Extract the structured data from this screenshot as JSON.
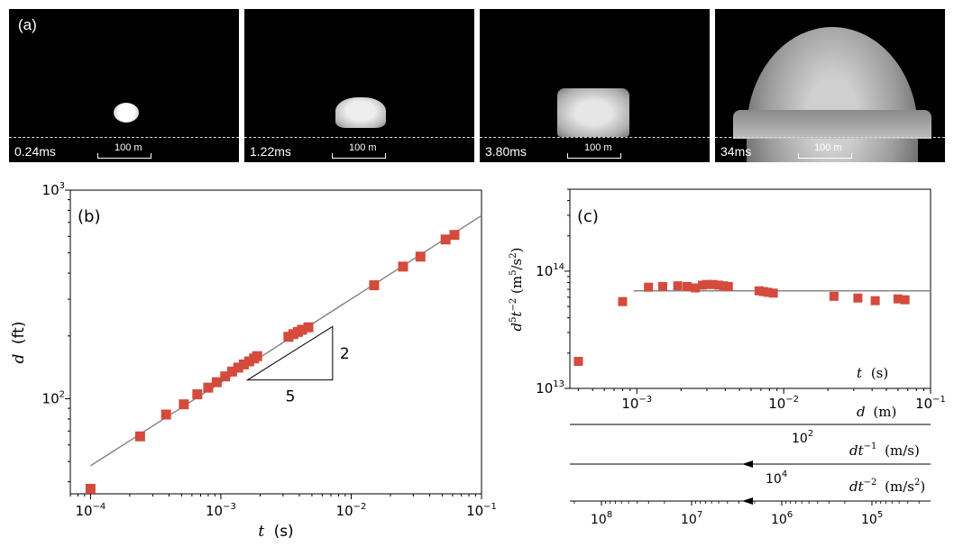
{
  "panel_a": {
    "label": "(a)",
    "frames": [
      {
        "time": "0.24ms",
        "scale": "100 m"
      },
      {
        "time": "1.22ms",
        "scale": "100 m"
      },
      {
        "time": "3.80ms",
        "scale": "100 m"
      },
      {
        "time": "34ms",
        "scale": "100 m"
      }
    ]
  },
  "chart_data": [
    {
      "type": "scatter",
      "panel_label": "(b)",
      "xlabel_var": "t",
      "xlabel_unit": "(s)",
      "ylabel_var": "d",
      "ylabel_unit": "(ft)",
      "x_scale": "log",
      "y_scale": "log",
      "xlim": [
        7e-05,
        0.1
      ],
      "ylim": [
        35,
        1000
      ],
      "x_ticks": [
        {
          "value": 0.0001,
          "base": "10",
          "exp": "−4"
        },
        {
          "value": 0.001,
          "base": "10",
          "exp": "−3"
        },
        {
          "value": 0.01,
          "base": "10",
          "exp": "−2"
        },
        {
          "value": 0.1,
          "base": "10",
          "exp": "−1"
        }
      ],
      "y_ticks": [
        {
          "value": 100,
          "base": "10",
          "exp": "2"
        },
        {
          "value": 1000,
          "base": "10",
          "exp": "3"
        }
      ],
      "points": [
        [
          0.0001,
          37
        ],
        [
          0.00024,
          66
        ],
        [
          0.00038,
          84
        ],
        [
          0.00052,
          94
        ],
        [
          0.00066,
          105
        ],
        [
          0.0008,
          113
        ],
        [
          0.00093,
          120
        ],
        [
          0.00108,
          128
        ],
        [
          0.00122,
          135
        ],
        [
          0.00136,
          141
        ],
        [
          0.0015,
          146
        ],
        [
          0.00165,
          151
        ],
        [
          0.0018,
          156
        ],
        [
          0.0019,
          160
        ],
        [
          0.0033,
          198
        ],
        [
          0.0036,
          204
        ],
        [
          0.0039,
          209
        ],
        [
          0.0042,
          214
        ],
        [
          0.0047,
          220
        ],
        [
          0.015,
          350
        ],
        [
          0.025,
          430
        ],
        [
          0.034,
          480
        ],
        [
          0.053,
          580
        ],
        [
          0.062,
          610
        ]
      ],
      "fit_line": {
        "x": [
          0.0001,
          0.1
        ],
        "y": [
          47.7,
          755
        ]
      },
      "slope_triangle": {
        "rise_label": "2",
        "run_label": "5",
        "x": [
          0.0016,
          0.0072
        ],
        "y": [
          123,
          222
        ]
      },
      "marker_color": "#d44a3c",
      "line_color": "#888888"
    },
    {
      "type": "scatter",
      "panel_label": "(c)",
      "ylabel": "d⁵t⁻² (m⁵/s²)",
      "ylabel_var": "d",
      "ylabel_exp1": "5",
      "ylabel_t": "t",
      "ylabel_exp2": "−2",
      "ylabel_units_pre": " (m",
      "ylabel_units_exp": "5",
      "ylabel_units_mid": "/s",
      "ylabel_units_exp2": "2",
      "ylabel_units_post": ")",
      "x_scale": "log",
      "y_scale": "log",
      "xlim": [
        0.00035,
        0.1
      ],
      "ylim": [
        10000000000000,
        500000000000000
      ],
      "x_ticks": [
        {
          "value": 0.001,
          "base": "10",
          "exp": "−3"
        },
        {
          "value": 0.01,
          "base": "10",
          "exp": "−2"
        },
        {
          "value": 0.1,
          "base": "10",
          "exp": "−1"
        }
      ],
      "y_ticks": [
        {
          "value": 10000000000000,
          "base": "10",
          "exp": "13"
        },
        {
          "value": 100000000000000,
          "base": "10",
          "exp": "14"
        }
      ],
      "inner_xlabel_var": "t",
      "inner_xlabel_unit": "(s)",
      "points": [
        [
          0.0004,
          17000000000000
        ],
        [
          0.0008,
          55000000000000
        ],
        [
          0.0012,
          73000000000000
        ],
        [
          0.0015,
          74000000000000
        ],
        [
          0.0019,
          75000000000000
        ],
        [
          0.0022,
          74000000000000
        ],
        [
          0.0025,
          72000000000000
        ],
        [
          0.0028,
          76000000000000
        ],
        [
          0.003,
          77000000000000
        ],
        [
          0.0033,
          77000000000000
        ],
        [
          0.0036,
          76000000000000
        ],
        [
          0.0039,
          75000000000000
        ],
        [
          0.0042,
          74000000000000
        ],
        [
          0.0068,
          68000000000000
        ],
        [
          0.0073,
          67000000000000
        ],
        [
          0.0078,
          66000000000000
        ],
        [
          0.0085,
          65000000000000
        ],
        [
          0.022,
          61000000000000
        ],
        [
          0.032,
          59000000000000
        ],
        [
          0.042,
          56000000000000
        ],
        [
          0.06,
          58000000000000
        ],
        [
          0.067,
          57000000000000
        ]
      ],
      "fit_value": 68000000000000,
      "marker_color": "#d44a3c",
      "line_color": "#888888",
      "secondary_axes": [
        {
          "var": "d",
          "unit": "(m)",
          "tick_label_base": "10",
          "tick_label_exp": "2"
        },
        {
          "var": "dt",
          "exp": "−1",
          "unit": "(m/s)",
          "tick_label_base": "10",
          "tick_label_exp": "4"
        },
        {
          "var": "dt",
          "exp": "−2",
          "unit_pre": "(m/s",
          "unit_exp": "2",
          "unit_post": ")",
          "ticks": [
            {
              "base": "10",
              "exp": "8"
            },
            {
              "base": "10",
              "exp": "7"
            },
            {
              "base": "10",
              "exp": "6"
            },
            {
              "base": "10",
              "exp": "5"
            }
          ]
        }
      ]
    }
  ]
}
